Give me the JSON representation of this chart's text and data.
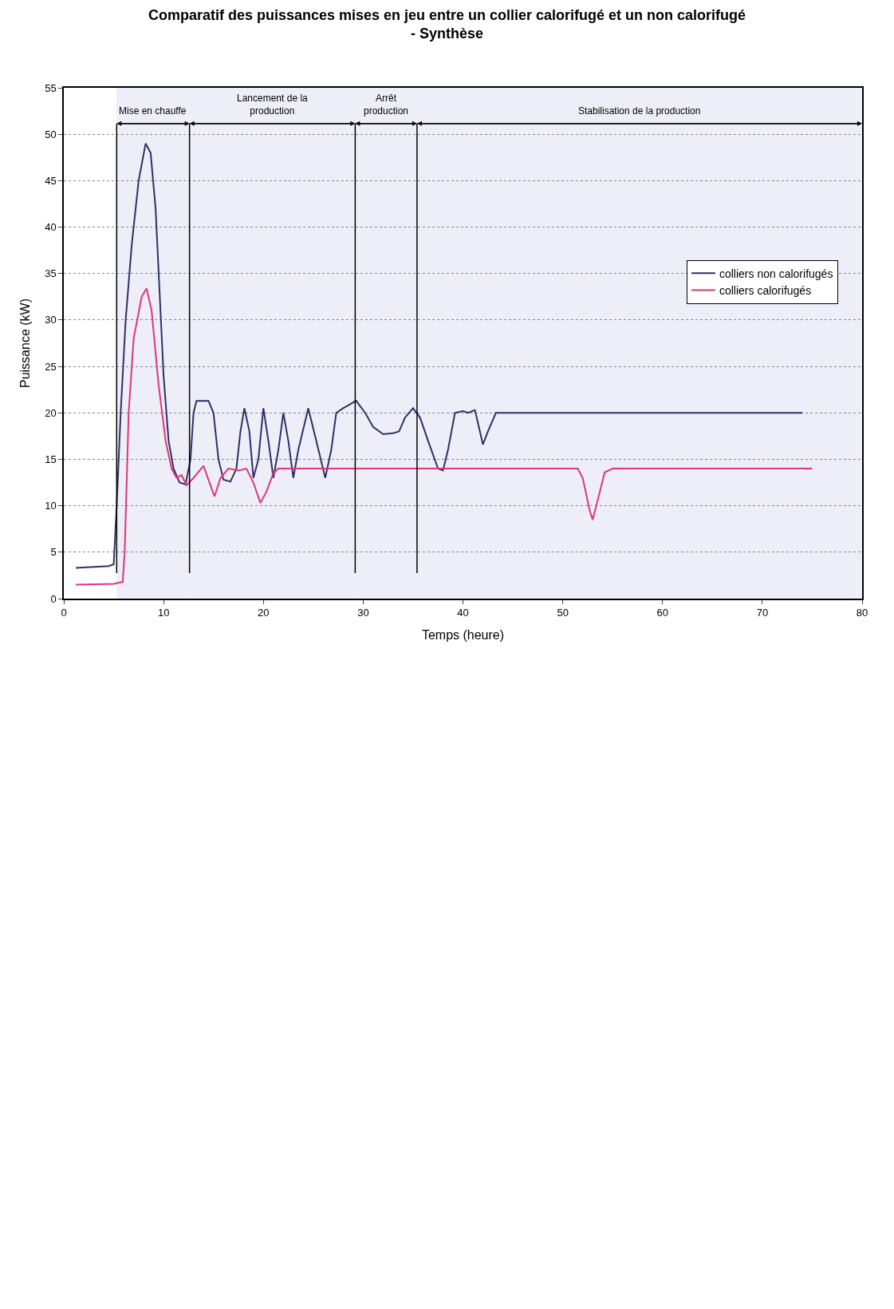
{
  "chart_data": {
    "type": "line",
    "title": "Comparatif des puissances mises en jeu entre un collier calorifugé et un non calorifugé\n- Synthèse",
    "xlabel": "Temps (heure)",
    "ylabel": "Puissance (kW)",
    "xlim": [
      0,
      80
    ],
    "xticks": [
      0,
      10,
      20,
      30,
      40,
      50,
      60,
      70,
      80
    ],
    "ylim": [
      0,
      55
    ],
    "yticks": [
      0,
      5,
      10,
      15,
      20,
      25,
      30,
      35,
      40,
      45,
      50,
      55
    ],
    "grid": "y",
    "legend": "right",
    "line_style": "solid",
    "marker": "none",
    "series": [
      {
        "name": "colliers non calorifugés",
        "color": "#2e3166",
        "x": [
          1.2,
          4.5,
          5.0,
          5.3,
          5.7,
          6.2,
          6.8,
          7.5,
          8.2,
          8.7,
          9.2,
          9.6,
          10.0,
          10.5,
          11.0,
          11.6,
          12.2,
          12.7,
          13.0,
          13.3,
          14.5,
          15.0,
          15.5,
          16.0,
          16.7,
          17.3,
          17.7,
          18.1,
          18.6,
          19.0,
          19.5,
          20.0,
          20.5,
          21.0,
          21.5,
          22.0,
          22.5,
          23.0,
          23.5,
          24.5,
          25.3,
          26.2,
          26.8,
          27.3,
          28.0,
          29.3,
          30.2,
          31.0,
          32.0,
          33.0,
          33.6,
          34.2,
          35.0,
          35.7,
          36.5,
          37.5,
          38.0,
          38.5,
          39.2,
          40.0,
          40.5,
          41.2,
          41.7,
          42.0,
          42.5,
          43.3,
          44.0,
          74.0
        ],
        "values": [
          3.3,
          3.5,
          3.7,
          10,
          20,
          30,
          38,
          45,
          49,
          48,
          42,
          33,
          24,
          17,
          14,
          12.5,
          12.3,
          15,
          20,
          21.3,
          21.3,
          20,
          15,
          12.8,
          12.6,
          14,
          18,
          20.5,
          18,
          13,
          15,
          20.5,
          17,
          13,
          16,
          20,
          17,
          13,
          16,
          20.5,
          17,
          13,
          16,
          20,
          20.5,
          21.3,
          20,
          18.5,
          17.7,
          17.8,
          18,
          19.5,
          20.5,
          19.5,
          17,
          14,
          13.8,
          16,
          20,
          20.2,
          20,
          20.3,
          18,
          16.6,
          18,
          20,
          20,
          20
        ]
      },
      {
        "name": "colliers calorifugés",
        "color": "#e0357a",
        "x": [
          1.2,
          5.0,
          5.9,
          6.1,
          6.5,
          7.0,
          7.8,
          8.3,
          8.8,
          9.5,
          10.2,
          10.8,
          11.3,
          11.8,
          12.3,
          13.0,
          14.0,
          14.6,
          15.1,
          15.7,
          16.5,
          17.5,
          18.3,
          19.0,
          19.7,
          20.3,
          21.0,
          21.5,
          51.5,
          52.0,
          52.7,
          53.0,
          53.6,
          54.2,
          55.0,
          75.0
        ],
        "values": [
          1.5,
          1.6,
          1.8,
          5,
          20,
          28,
          32.5,
          33.4,
          31,
          23,
          17,
          14,
          13,
          13.3,
          12.2,
          13,
          14.3,
          12.5,
          11,
          13,
          14,
          13.8,
          14,
          12.5,
          10.3,
          11.5,
          13.5,
          14,
          14,
          13,
          9.5,
          8.5,
          11,
          13.6,
          14,
          14
        ]
      }
    ],
    "ref_lines": [
      {
        "axis": "x",
        "value": 5.3,
        "color": "#000000"
      },
      {
        "axis": "x",
        "value": 12.6,
        "color": "#000000"
      },
      {
        "axis": "x",
        "value": 29.2,
        "color": "#000000"
      },
      {
        "axis": "x",
        "value": 35.4,
        "color": "#000000"
      }
    ],
    "bands": [
      {
        "axis": "x",
        "from": 5.3,
        "to": 12.6,
        "label": "Mise en chauffe",
        "color": "#eeeef8"
      },
      {
        "axis": "x",
        "from": 12.6,
        "to": 29.2,
        "label": "Lancement de la\nproduction",
        "color": "#eeeef8"
      },
      {
        "axis": "x",
        "from": 29.2,
        "to": 35.4,
        "label": "Arrêt\nproduction",
        "color": "#eeeef8"
      },
      {
        "axis": "x",
        "from": 35.4,
        "to": 80,
        "label": "Stabilisation de la production",
        "color": "#eeeef8"
      }
    ]
  }
}
